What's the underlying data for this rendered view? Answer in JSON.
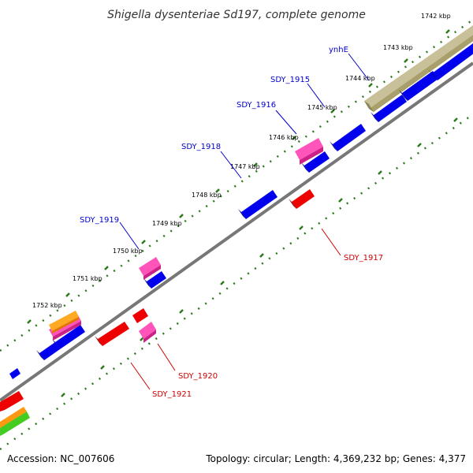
{
  "title": "Shigella dysenteriae Sd197, complete genome",
  "footer": {
    "accession": "Accession: NC_007606",
    "summary": "Topology: circular; Length: 4,369,232 bp; Genes: 4,377"
  },
  "tick_labels": [
    "1742 kbp",
    "1743 kbp",
    "1744 kbp",
    "1745 kbp",
    "1746 kbp",
    "1747 kbp",
    "1748 kbp",
    "1749 kbp",
    "1750 kbp",
    "1751 kbp",
    "1752 kbp"
  ],
  "gene_labels": {
    "ynhE": "ynhE",
    "sdy_1915": "SDY_1915",
    "sdy_1916": "SDY_1916",
    "sdy_1918": "SDY_1918",
    "sdy_1919": "SDY_1919",
    "sdy_1917": "SDY_1917",
    "sdy_1920": "SDY_1920",
    "sdy_1921": "SDY_1921"
  },
  "colors": {
    "forward_label": "#0000cc",
    "reverse_label": "#cc0000",
    "backbone": "#888888",
    "ticks": "#2a7a1a",
    "cds_blue": "#0000ee",
    "cds_red": "#ee0000",
    "cds_pink": "#ee3399",
    "cds_orange": "#ff8800",
    "cds_olive": "#b8b080",
    "cds_green": "#44bb22"
  }
}
